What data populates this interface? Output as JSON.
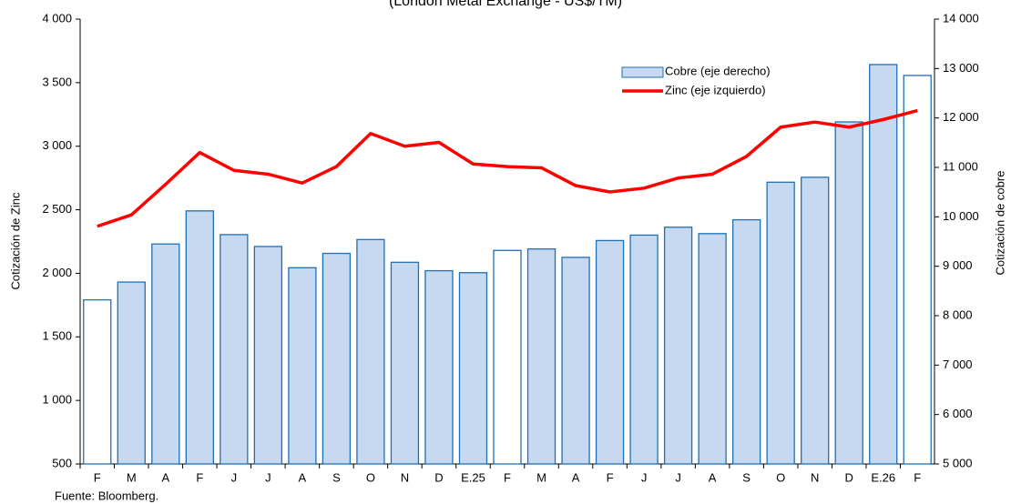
{
  "chart_data": {
    "type": "bar_line",
    "subtitle": "(London Metal Exchange - US$/TM)",
    "ylabel": "Cotización de Zinc",
    "y2label": "Cotización de cobre",
    "source": "Fuente: Bloomberg.",
    "categories": [
      "F",
      "M",
      "A",
      "F",
      "J",
      "J",
      "A",
      "S",
      "O",
      "N",
      "D",
      "E.25",
      "F",
      "M",
      "A",
      "F",
      "J",
      "J",
      "A",
      "S",
      "O",
      "N",
      "D",
      "E.26",
      "F"
    ],
    "ylim": [
      500,
      4000
    ],
    "yticks": [
      {
        "value": 500,
        "label": "500"
      },
      {
        "value": 1000,
        "label": "1 000"
      },
      {
        "value": 1500,
        "label": "1 500"
      },
      {
        "value": 2000,
        "label": "2 000"
      },
      {
        "value": 2500,
        "label": "2 500"
      },
      {
        "value": 3000,
        "label": "3 000"
      },
      {
        "value": 3500,
        "label": "3 500"
      },
      {
        "value": 4000,
        "label": "4 000"
      }
    ],
    "y2lim": [
      5000,
      14000
    ],
    "y2ticks": [
      {
        "value": 5000,
        "label": "5 000"
      },
      {
        "value": 6000,
        "label": "6 000"
      },
      {
        "value": 7000,
        "label": "7 000"
      },
      {
        "value": 8000,
        "label": "8 000"
      },
      {
        "value": 9000,
        "label": "9 000"
      },
      {
        "value": 10000,
        "label": "10 000"
      },
      {
        "value": 11000,
        "label": "11 000"
      },
      {
        "value": 12000,
        "label": "12 000"
      },
      {
        "value": 13000,
        "label": "13 000"
      },
      {
        "value": 14000,
        "label": "14 000"
      }
    ],
    "series": [
      {
        "name": "Cobre (eje derecho)",
        "type": "bar",
        "axis": "y2",
        "color": "#c6d9f0",
        "edge_color": "#1f6fb5",
        "colors": [
          "#ffffff",
          "#c6d9f0",
          "#c6d9f0",
          "#c6d9f0",
          "#c6d9f0",
          "#c6d9f0",
          "#c6d9f0",
          "#c6d9f0",
          "#c6d9f0",
          "#c6d9f0",
          "#c6d9f0",
          "#c6d9f0",
          "#ffffff",
          "#c6d9f0",
          "#c6d9f0",
          "#c6d9f0",
          "#c6d9f0",
          "#c6d9f0",
          "#c6d9f0",
          "#c6d9f0",
          "#c6d9f0",
          "#c6d9f0",
          "#c6d9f0",
          "#c6d9f0",
          "#ffffff"
        ],
        "values": [
          8320,
          8680,
          9450,
          10120,
          9640,
          9400,
          8970,
          9260,
          9540,
          9080,
          8910,
          8870,
          9320,
          9350,
          9180,
          9520,
          9630,
          9790,
          9660,
          9940,
          10700,
          10800,
          11920,
          13080,
          12860
        ]
      },
      {
        "name": "Zinc (eje izquierdo)",
        "type": "line",
        "color": "#ff0000",
        "values": [
          2370,
          2460,
          2700,
          2950,
          2810,
          2780,
          2710,
          2840,
          3100,
          3000,
          3030,
          2860,
          2840,
          2830,
          2690,
          2640,
          2670,
          2750,
          2780,
          2920,
          3150,
          3190,
          3150,
          3210,
          3280
        ]
      }
    ]
  }
}
